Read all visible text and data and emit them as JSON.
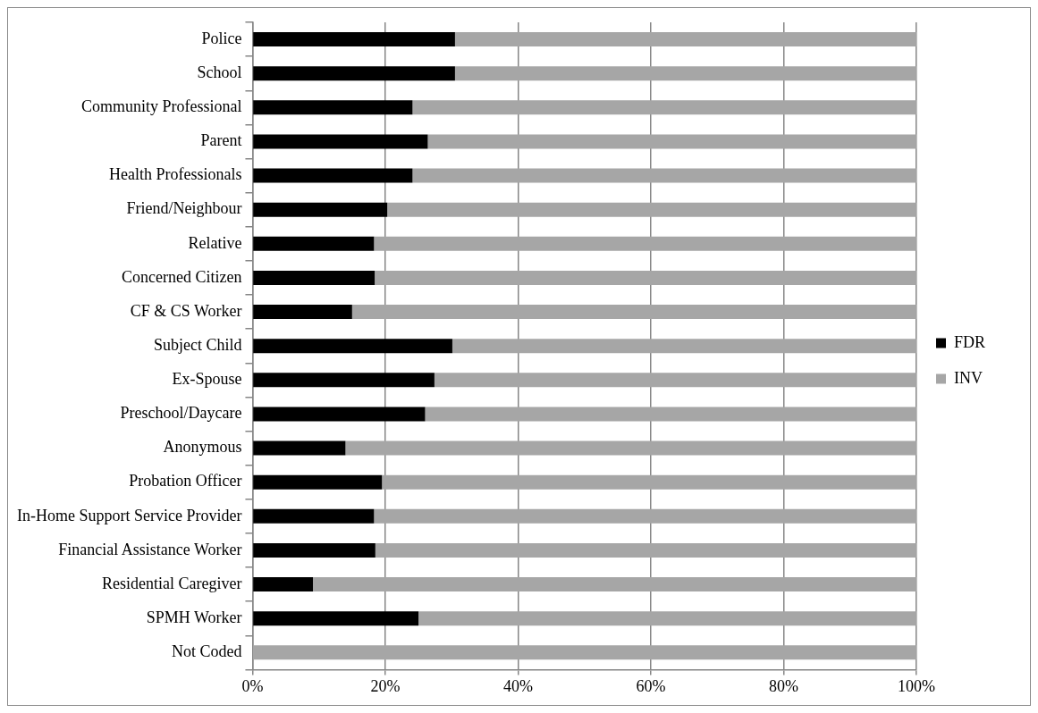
{
  "chart_data": {
    "type": "bar",
    "orientation": "horizontal",
    "stacked": true,
    "categories": [
      "Police",
      "School",
      "Community Professional",
      "Parent",
      "Health Professionals",
      "Friend/Neighbour",
      "Relative",
      "Concerned Citizen",
      "CF & CS Worker",
      "Subject Child",
      "Ex-Spouse",
      "Preschool/Daycare",
      "Anonymous",
      "Probation Officer",
      "In-Home Support Service Provider",
      "Financial Assistance Worker",
      "Residential Caregiver",
      "SPMH Worker",
      "Not Coded"
    ],
    "series": [
      {
        "name": "FDR",
        "color": "#000000",
        "values": [
          30.5,
          30.5,
          24.1,
          26.4,
          24.1,
          20.3,
          18.3,
          18.4,
          15.0,
          30.1,
          27.4,
          26.0,
          14.0,
          19.5,
          18.3,
          18.5,
          9.1,
          25.0,
          0
        ]
      },
      {
        "name": "INV",
        "color": "#a6a6a6",
        "values": [
          69.5,
          69.5,
          75.9,
          73.6,
          75.9,
          79.7,
          81.7,
          81.6,
          85.0,
          69.9,
          72.6,
          74.0,
          86.0,
          80.5,
          81.7,
          81.5,
          90.9,
          75.0,
          100
        ]
      }
    ],
    "xlim": [
      0,
      100
    ],
    "xticks": [
      {
        "value": 0,
        "label": "0%"
      },
      {
        "value": 20,
        "label": "20%"
      },
      {
        "value": 40,
        "label": "40%"
      },
      {
        "value": 60,
        "label": "60%"
      },
      {
        "value": 80,
        "label": "80%"
      },
      {
        "value": 100,
        "label": "100%"
      }
    ],
    "grid": "x",
    "legend": "right"
  }
}
